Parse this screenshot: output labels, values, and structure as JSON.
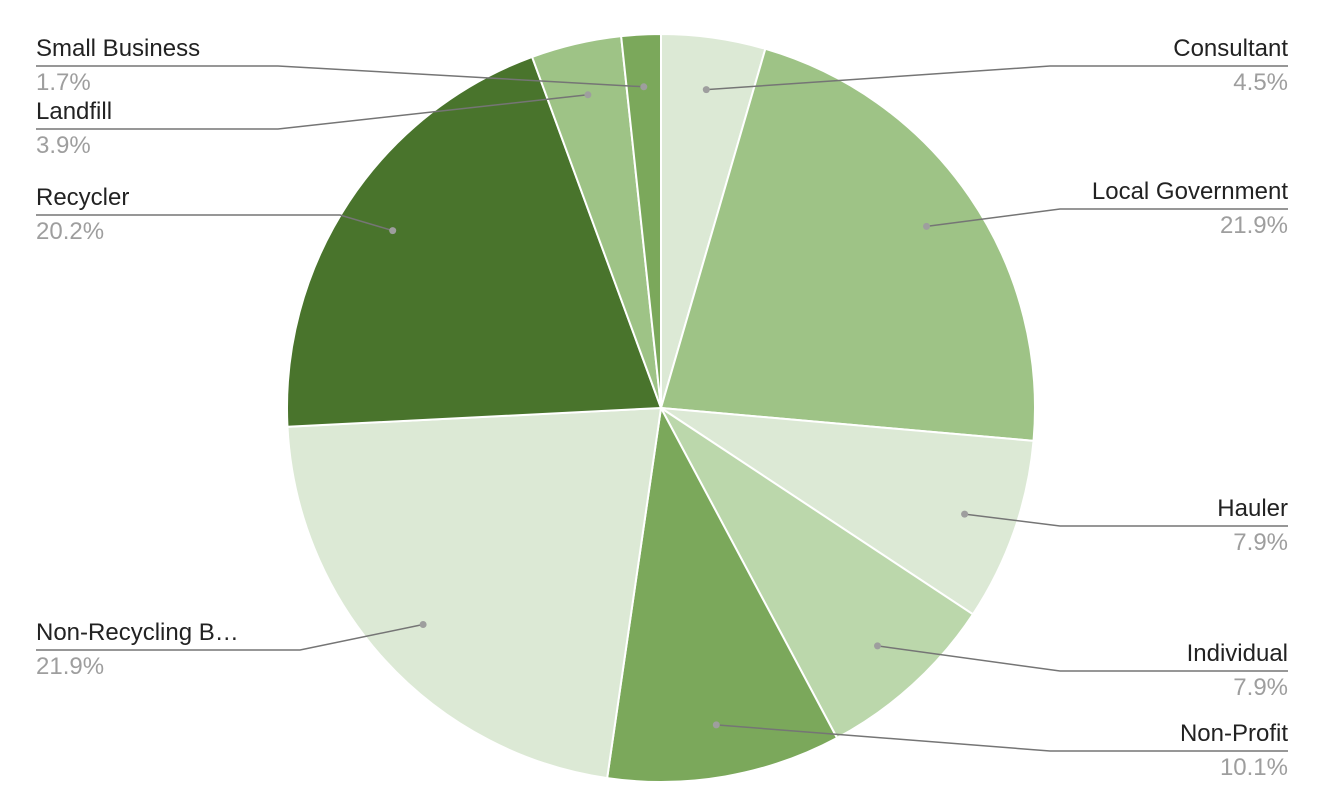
{
  "chart_data": {
    "type": "pie",
    "start_angle_deg": 0,
    "direction": "clockwise",
    "slices": [
      {
        "label": "Consultant",
        "value": 4.5,
        "display": "4.5%",
        "color": "#dce9d5",
        "side": "right"
      },
      {
        "label": "Local Government",
        "value": 21.9,
        "display": "21.9%",
        "color": "#9ec386",
        "side": "right"
      },
      {
        "label": "Hauler",
        "value": 7.9,
        "display": "7.9%",
        "color": "#dce9d5",
        "side": "right"
      },
      {
        "label": "Individual",
        "value": 7.9,
        "display": "7.9%",
        "color": "#bbd7ab",
        "side": "right"
      },
      {
        "label": "Non-Profit",
        "value": 10.1,
        "display": "10.1%",
        "color": "#7ba85b",
        "side": "right"
      },
      {
        "label": "Non-Recycling B…",
        "value": 21.9,
        "display": "21.9%",
        "color": "#dce9d5",
        "side": "left"
      },
      {
        "label": "Recycler",
        "value": 20.2,
        "display": "20.2%",
        "color": "#49742c",
        "side": "left"
      },
      {
        "label": "Landfill",
        "value": 3.9,
        "display": "3.9%",
        "color": "#9ec386",
        "side": "left"
      },
      {
        "label": "Small Business",
        "value": 1.7,
        "display": "1.7%",
        "color": "#7ba85b",
        "side": "left"
      }
    ]
  }
}
